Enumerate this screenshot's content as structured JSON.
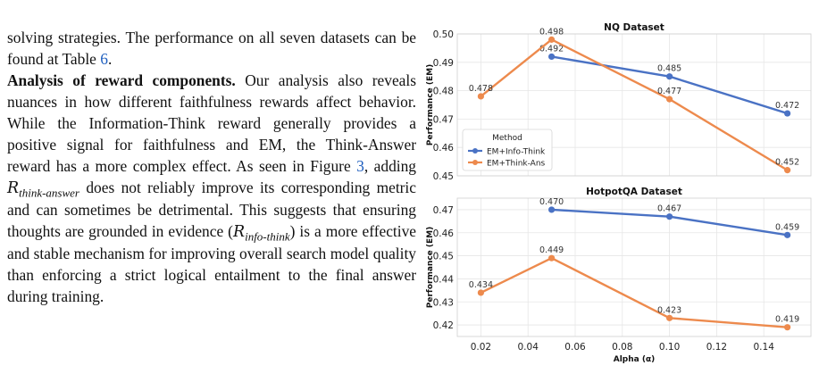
{
  "paragraph_lead": "solving strategies. The performance on all seven datasets can be found at Table ",
  "table_ref": "6",
  "lead_end": ".",
  "heading": "Analysis of reward components.",
  "body1": " Our analysis also reveals nuances in how different faithfulness rewards affect behavior. While the Information-Think reward generally provides a positive signal for faithfulness and EM, the Think-Answer reward has a more complex effect. As seen in Figure ",
  "figure_ref": "3",
  "body2": ", adding ",
  "sym_R": "R",
  "sub_think_answer": "think-answer",
  "body3": " does not reliably improve its corresponding metric and can sometimes be detrimental. This suggests that ensuring thoughts are grounded in evidence (",
  "sub_info_think": "info-think",
  "body4": ") is a more effective and stable mechanism for improving overall search model quality than enforcing a strict logical entailment to the final answer during training.",
  "colors": {
    "info_think": "#4a72c4",
    "think_ans": "#ed8a4d"
  },
  "chart_data": [
    {
      "type": "line",
      "title": "NQ Dataset",
      "ylabel": "Performance (EM)",
      "xlabel": "",
      "xlim": [
        0.01,
        0.16
      ],
      "ylim": [
        0.45,
        0.5
      ],
      "yticks": [
        "0.45",
        "0.46",
        "0.47",
        "0.48",
        "0.49",
        "0.50"
      ],
      "grid": true,
      "legend": {
        "title": "Method",
        "placement": "lower-left",
        "entries": [
          "EM+Info-Think",
          "EM+Think-Ans"
        ]
      },
      "series": [
        {
          "name": "EM+Info-Think",
          "x": [
            0.05,
            0.1,
            0.15
          ],
          "values": [
            0.492,
            0.485,
            0.472
          ],
          "labels": [
            "0.492",
            "0.485",
            "0.472"
          ]
        },
        {
          "name": "EM+Think-Ans",
          "x": [
            0.02,
            0.05,
            0.1,
            0.15
          ],
          "values": [
            0.478,
            0.498,
            0.477,
            0.452
          ],
          "labels": [
            "0.478",
            "0.498",
            "0.477",
            "0.452"
          ]
        }
      ]
    },
    {
      "type": "line",
      "title": "HotpotQA Dataset",
      "ylabel": "Performance (EM)",
      "xlabel": "Alpha (α)",
      "xlim": [
        0.01,
        0.16
      ],
      "ylim": [
        0.415,
        0.475
      ],
      "xticks": [
        "0.02",
        "0.04",
        "0.06",
        "0.08",
        "0.10",
        "0.12",
        "0.14"
      ],
      "yticks": [
        "0.42",
        "0.43",
        "0.44",
        "0.45",
        "0.46",
        "0.47"
      ],
      "grid": true,
      "series": [
        {
          "name": "EM+Info-Think",
          "x": [
            0.05,
            0.1,
            0.15
          ],
          "values": [
            0.47,
            0.467,
            0.459
          ],
          "labels": [
            "0.470",
            "0.467",
            "0.459"
          ]
        },
        {
          "name": "EM+Think-Ans",
          "x": [
            0.02,
            0.05,
            0.1,
            0.15
          ],
          "values": [
            0.434,
            0.449,
            0.423,
            0.419
          ],
          "labels": [
            "0.434",
            "0.449",
            "0.423",
            "0.419"
          ]
        }
      ]
    }
  ]
}
